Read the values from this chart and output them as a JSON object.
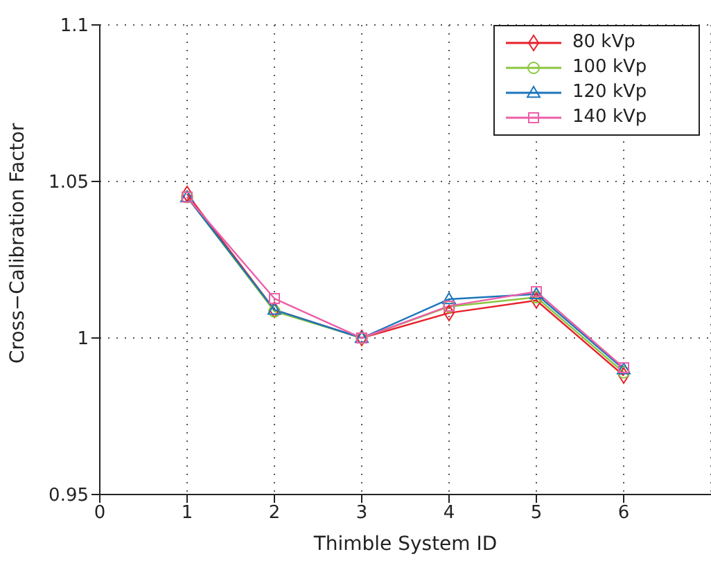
{
  "chart_data": {
    "type": "line",
    "xlabel": "Thimble System ID",
    "ylabel": "Cross−Calibration Factor",
    "x": [
      1,
      2,
      3,
      4,
      5,
      6
    ],
    "series": [
      {
        "name": "80 kVp",
        "color": "#e8212b",
        "marker": "diamond",
        "values": [
          1.046,
          1.009,
          1.0,
          1.008,
          1.012,
          0.988
        ]
      },
      {
        "name": "100 kVp",
        "color": "#8cc63f",
        "marker": "circle",
        "values": [
          1.045,
          1.0085,
          1.0,
          1.01,
          1.013,
          0.989
        ]
      },
      {
        "name": "120 kVp",
        "color": "#1b75bb",
        "marker": "triangle",
        "values": [
          1.045,
          1.009,
          1.0,
          1.0124,
          1.014,
          0.99
        ]
      },
      {
        "name": "140 kVp",
        "color": "#ec5fa8",
        "marker": "square",
        "values": [
          1.045,
          1.0126,
          1.0,
          1.0102,
          1.0148,
          0.9905
        ]
      }
    ],
    "xlim": [
      0,
      7
    ],
    "xticks": [
      0,
      1,
      2,
      3,
      4,
      5,
      6
    ],
    "ylim": [
      0.95,
      1.1
    ],
    "yticks": [
      0.95,
      1,
      1.05,
      1.1
    ],
    "grid": true,
    "legend": "top right",
    "line_style": "solid"
  }
}
